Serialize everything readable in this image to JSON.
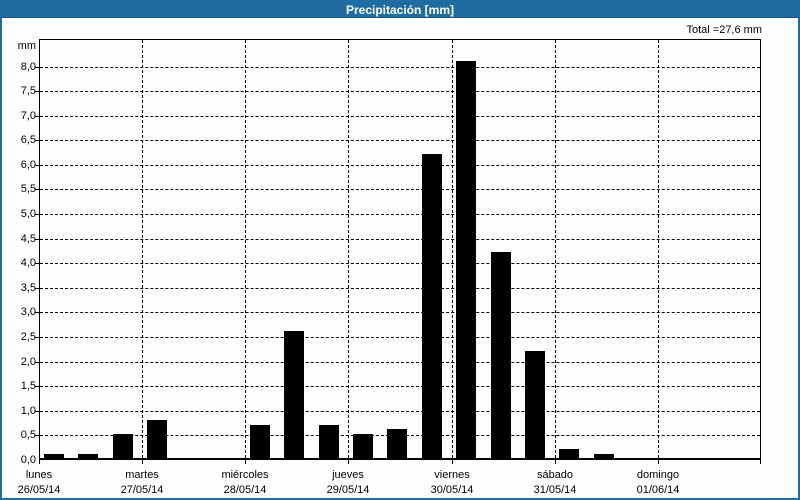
{
  "window": {
    "title": "Precipitación [mm]"
  },
  "summary": {
    "total_label": "Total =27,6 mm"
  },
  "colors": {
    "accent_blue": "#1E6CA2",
    "bar": "#000000",
    "background": "#FDFEFD",
    "grid": "#000000"
  },
  "chart_data": {
    "type": "bar",
    "title": "Precipitación [mm]",
    "ylabel": "mm",
    "xlabel": "",
    "total_mm": 27.6,
    "total_text": "Total =27,6 mm",
    "grid": true,
    "legend_position": "none",
    "bar_color": "#000000",
    "y_axis": {
      "min": 0,
      "max": 8.56,
      "tick_step": 0.5,
      "tick_labels": [
        "0,0",
        "0,5",
        "1,0",
        "1,5",
        "2,0",
        "2,5",
        "3,0",
        "3,5",
        "4,0",
        "4,5",
        "5,0",
        "5,5",
        "6,0",
        "6,5",
        "7,0",
        "7,5",
        "8,0"
      ]
    },
    "x_axis": {
      "periods_per_day": 3,
      "categories": [
        {
          "day": "lunes",
          "date": "26/05/14"
        },
        {
          "day": "martes",
          "date": "27/05/14"
        },
        {
          "day": "miércoles",
          "date": "28/05/14"
        },
        {
          "day": "jueves",
          "date": "29/05/14"
        },
        {
          "day": "viernes",
          "date": "30/05/14"
        },
        {
          "day": "sábado",
          "date": "31/05/14"
        },
        {
          "day": "domingo",
          "date": "01/06/14"
        }
      ]
    },
    "series": [
      {
        "name": "Precipitación",
        "values_by_day": [
          [
            0.1,
            0.1,
            0.5
          ],
          [
            0.8,
            0.0,
            0.0
          ],
          [
            0.7,
            2.6,
            0.7
          ],
          [
            0.5,
            0.6,
            6.2
          ],
          [
            8.1,
            4.2,
            2.2
          ],
          [
            0.2,
            0.1,
            0.0
          ],
          [
            0.0,
            0.0,
            0.0
          ]
        ]
      }
    ]
  }
}
